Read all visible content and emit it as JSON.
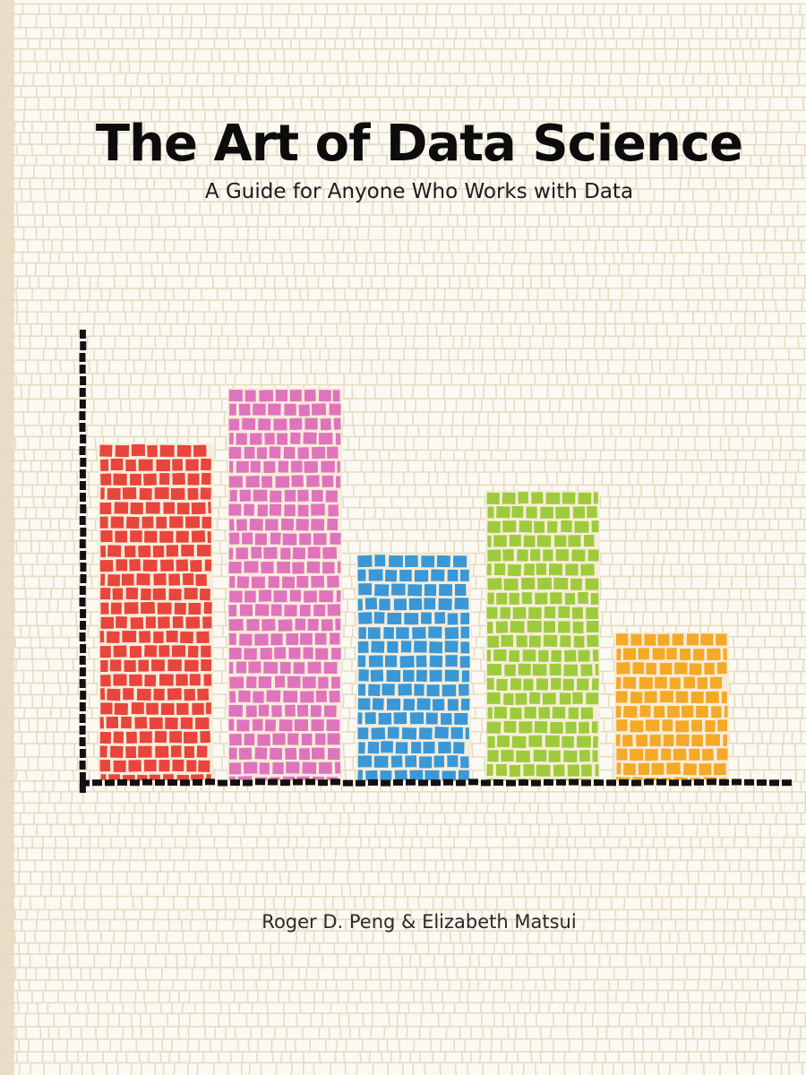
{
  "book": {
    "title": "The Art of Data Science",
    "subtitle": "A Guide for Anyone Who Works with Data",
    "authors": "Roger D. Peng & Elizabeth Matsui"
  },
  "colors": {
    "background": "#fbf9f2",
    "mosaic_line": "#e4dcc4",
    "axis": "#111111",
    "title": "#0c0c0c"
  },
  "chart_data": {
    "type": "bar",
    "title": "",
    "xlabel": "",
    "ylabel": "",
    "grid": false,
    "legend": "none",
    "ylim": [
      0,
      100
    ],
    "categories": [
      "",
      "",
      "",
      "",
      ""
    ],
    "values": [
      86,
      100,
      58,
      74,
      38
    ],
    "colors": [
      "#e8453c",
      "#df74bd",
      "#3a98d6",
      "#9ecb3c",
      "#f4a927"
    ]
  }
}
